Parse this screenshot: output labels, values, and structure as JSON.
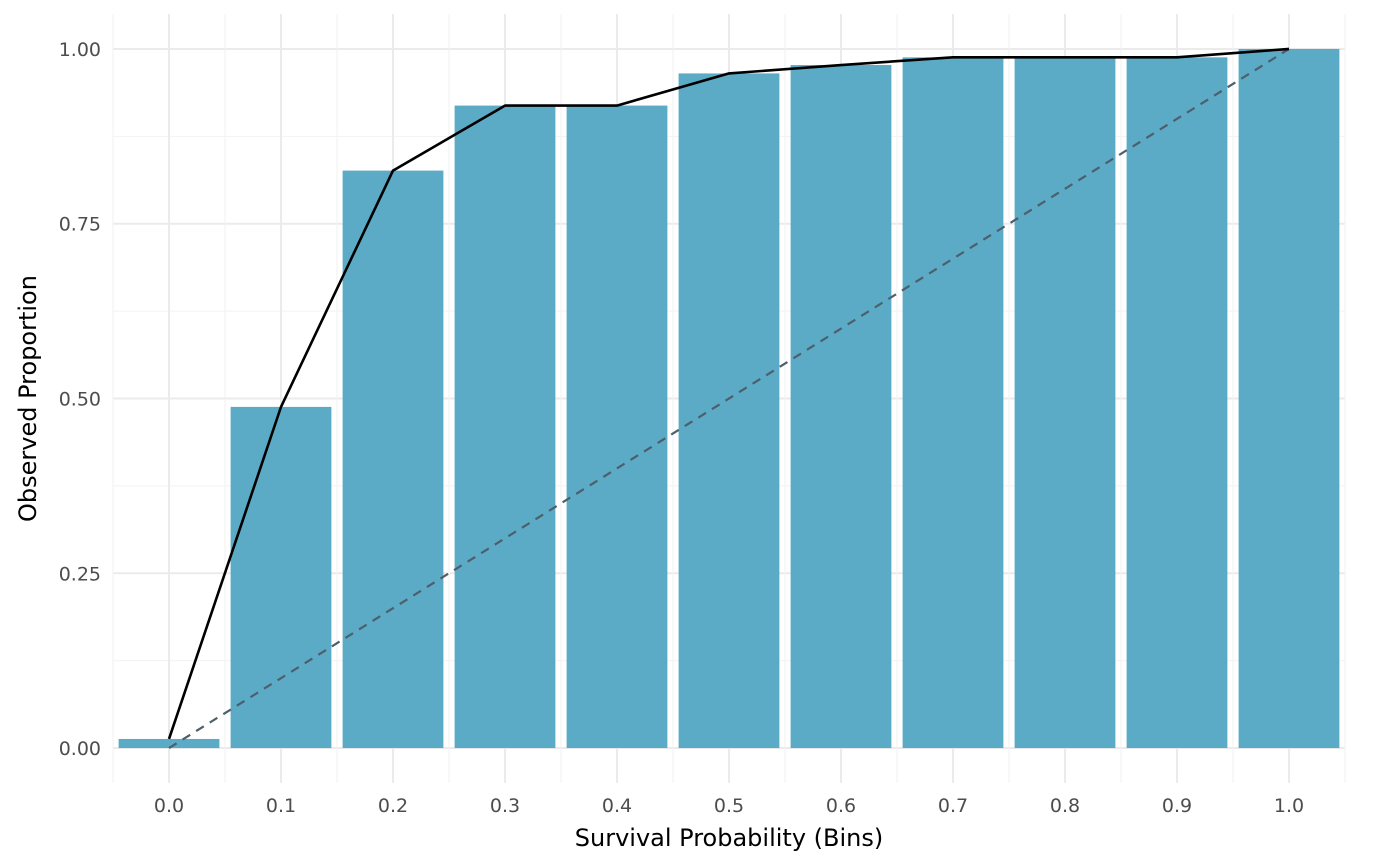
{
  "chart_data": {
    "type": "bar",
    "title": "",
    "xlabel": "Survival Probability (Bins)",
    "ylabel": "Observed Proportion",
    "categories": [
      "0.0",
      "0.1",
      "0.2",
      "0.3",
      "0.4",
      "0.5",
      "0.6",
      "0.7",
      "0.8",
      "0.9",
      "1.0"
    ],
    "x": [
      0.0,
      0.1,
      0.2,
      0.3,
      0.4,
      0.5,
      0.6,
      0.7,
      0.8,
      0.9,
      1.0
    ],
    "values": [
      0.013,
      0.488,
      0.826,
      0.919,
      0.919,
      0.965,
      0.977,
      0.988,
      0.988,
      0.988,
      1.0
    ],
    "line": {
      "x": [
        0.0,
        0.1,
        0.2,
        0.3,
        0.4,
        0.5,
        0.6,
        0.7,
        0.8,
        0.9,
        1.0
      ],
      "y": [
        0.013,
        0.488,
        0.826,
        0.919,
        0.919,
        0.965,
        0.977,
        0.988,
        0.988,
        0.988,
        1.0
      ]
    },
    "reference_line": {
      "x": [
        0.0,
        1.0
      ],
      "y": [
        0.0,
        1.0
      ],
      "style": "dashed"
    },
    "ylim": [
      -0.05,
      1.05
    ],
    "xlim": [
      -0.05,
      1.05
    ],
    "y_ticks": [
      "0.00",
      "0.25",
      "0.50",
      "0.75",
      "1.00"
    ],
    "y_tick_values": [
      0.0,
      0.25,
      0.5,
      0.75,
      1.0
    ],
    "grid": true,
    "legend": "none",
    "colors": {
      "bar": "#5babc7",
      "line": "#000000",
      "reference": "#4d5f6b",
      "grid": "#ebebeb"
    }
  }
}
